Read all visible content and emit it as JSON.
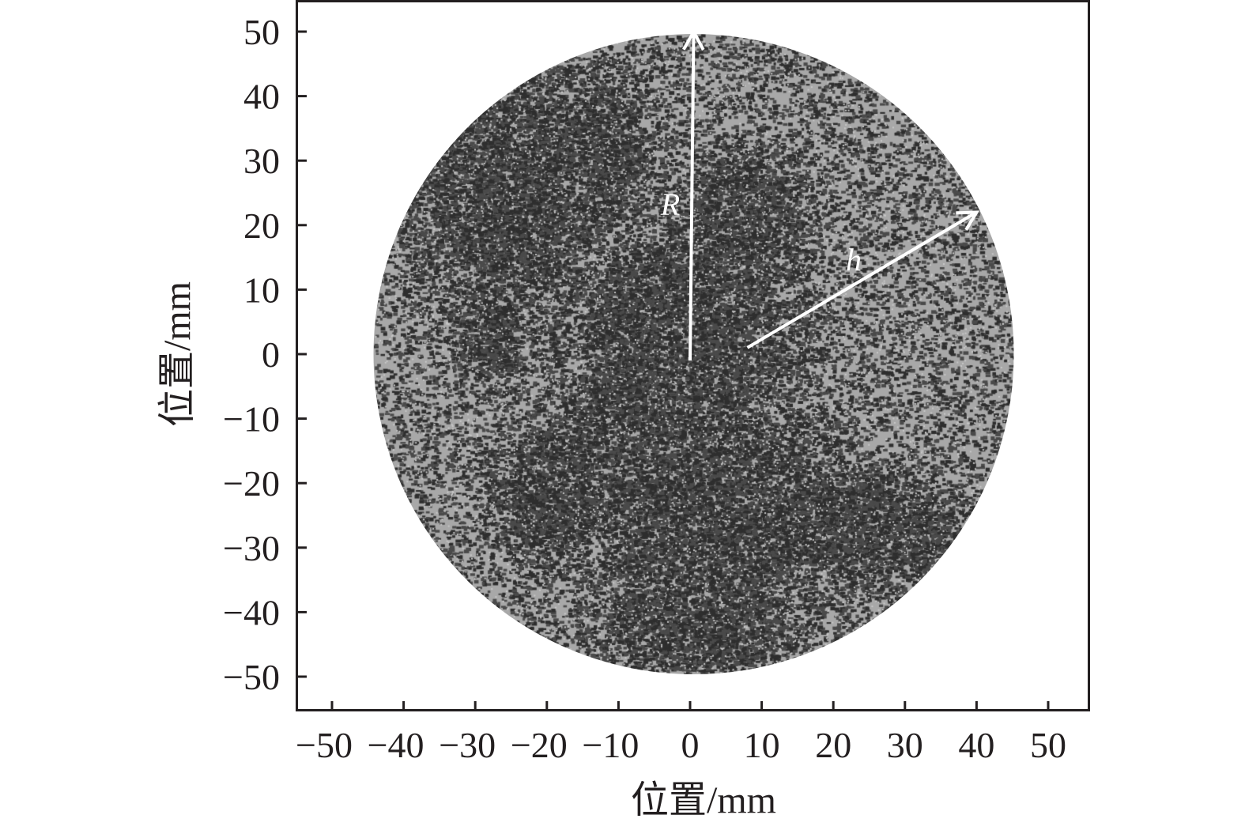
{
  "chart_data": {
    "type": "heatmap",
    "description_visible": "circular grayscale field image",
    "xlabel": "位置/mm",
    "ylabel": "位置/mm",
    "xlim": [
      -55,
      55
    ],
    "ylim": [
      -55,
      55
    ],
    "x_ticks": [
      -50,
      -40,
      -30,
      -20,
      -10,
      0,
      10,
      20,
      30,
      40,
      50
    ],
    "y_ticks": [
      50,
      40,
      30,
      20,
      10,
      0,
      -10,
      -20,
      -30,
      -40,
      -50
    ],
    "x_tick_labels": [
      "−50",
      "−40",
      "−30",
      "−20",
      "−10",
      "0",
      "10",
      "20",
      "30",
      "40",
      "50"
    ],
    "y_tick_labels": [
      "50",
      "40",
      "30",
      "20",
      "10",
      "0",
      "−10",
      "−20",
      "−30",
      "−40",
      "−50"
    ],
    "circle": {
      "center": [
        0.5,
        0
      ],
      "radius": 45
    },
    "annotations": [
      {
        "label": "R",
        "from": [
          0,
          -1
        ],
        "to": [
          0.5,
          50
        ]
      },
      {
        "label": "h",
        "from": [
          8,
          1
        ],
        "to": [
          40,
          22
        ]
      }
    ],
    "grid": false,
    "colors": {
      "light": "#a8a8a8",
      "dark": "#2e2e2e",
      "arrow": "#ffffff",
      "axis": "#231f20"
    }
  }
}
